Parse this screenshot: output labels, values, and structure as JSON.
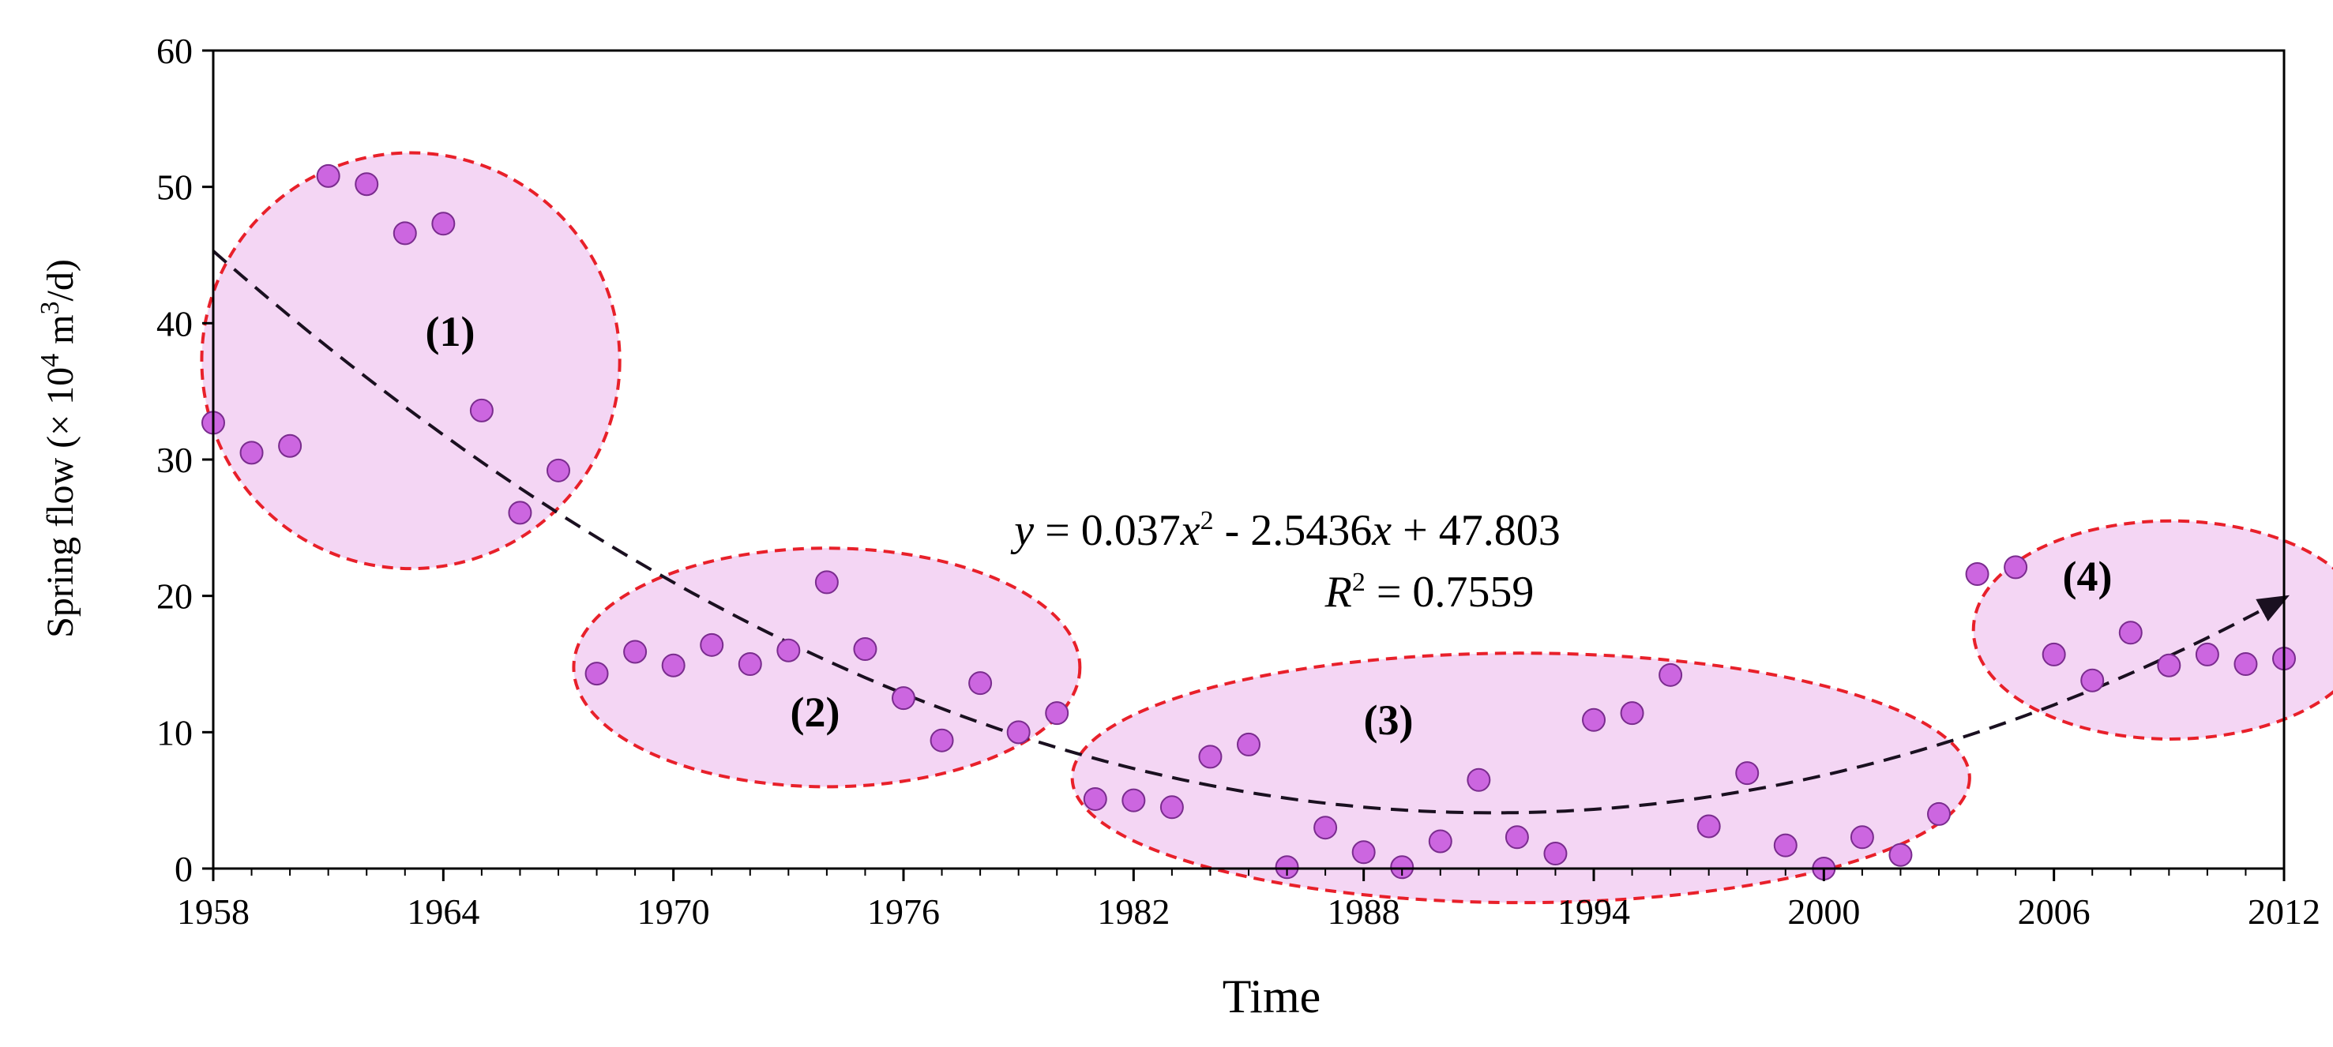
{
  "chart_data": {
    "type": "scatter",
    "title": "",
    "xlabel": "Time",
    "ylabel": {
      "prefix": "Spring flow (",
      "times": "×",
      "ten": "10",
      "exp": "4",
      "unit": "m",
      "unit_exp": "3",
      "suffix": "/d)"
    },
    "xlim": [
      1958,
      2012
    ],
    "ylim": [
      0,
      60
    ],
    "x_ticks": [
      1958,
      1964,
      1970,
      1976,
      1982,
      1988,
      1994,
      2000,
      2006,
      2012
    ],
    "y_ticks": [
      0,
      10,
      20,
      30,
      40,
      50,
      60
    ],
    "grid": false,
    "point_color": "#cc66e0",
    "point_edge_color": "#7a2c8e",
    "cluster_fill": "#f4d6f4",
    "cluster_edge_color": "#e8202a",
    "trend_color": "#1a1020",
    "series": [
      {
        "name": "Spring flow",
        "x": [
          1958,
          1959,
          1960,
          1961,
          1962,
          1963,
          1964,
          1965,
          1966,
          1967,
          1968,
          1969,
          1970,
          1971,
          1972,
          1973,
          1974,
          1975,
          1976,
          1977,
          1978,
          1979,
          1980,
          1981,
          1982,
          1983,
          1984,
          1985,
          1986,
          1987,
          1988,
          1989,
          1990,
          1991,
          1992,
          1993,
          1994,
          1995,
          1996,
          1997,
          1998,
          1999,
          2000,
          2001,
          2002,
          2003,
          2004,
          2005,
          2006,
          2007,
          2008,
          2009,
          2010,
          2011,
          2012
        ],
        "y": [
          32.7,
          30.5,
          31.0,
          50.8,
          50.2,
          46.6,
          47.3,
          33.6,
          26.1,
          29.2,
          14.3,
          15.9,
          14.9,
          16.4,
          15.0,
          16.0,
          21.0,
          16.1,
          12.5,
          9.4,
          13.6,
          10.0,
          11.4,
          5.1,
          5.0,
          4.5,
          8.2,
          9.1,
          0.1,
          3.0,
          1.2,
          0.1,
          2.0,
          6.5,
          2.3,
          1.1,
          10.9,
          11.4,
          14.2,
          3.1,
          7.0,
          1.7,
          0.0,
          2.3,
          1.0,
          4.0,
          21.6,
          22.1,
          15.7,
          13.8,
          17.3,
          14.9,
          15.7,
          15.0,
          15.4
        ]
      }
    ],
    "trendline": {
      "type": "polynomial",
      "equation": "y = 0.037x² - 2.5436x + 47.803",
      "a": 0.037,
      "b": -2.5436,
      "c": 47.803,
      "r_squared": "0.7559",
      "x_start": 1958,
      "x_end": 2012,
      "arrow_at_end": true
    },
    "equation_label": {
      "y_var": "y",
      "part1": " = 0.037",
      "x_var": "x",
      "exp": "2",
      "part2": " - 2.5436",
      "x_var2": "x",
      "part3": " + 47.803",
      "r_var": "R",
      "r_exp": "2",
      "r_part": " = 0.7559"
    },
    "clusters": [
      {
        "label": "(1)",
        "x_range": [
          1957.7,
          1968.6
        ],
        "y_range": [
          22.0,
          52.5
        ]
      },
      {
        "label": "(2)",
        "x_range": [
          1967.4,
          1980.6
        ],
        "y_range": [
          6.0,
          23.5
        ]
      },
      {
        "label": "(3)",
        "x_range": [
          1980.4,
          2003.8
        ],
        "y_range": [
          -2.5,
          15.8
        ]
      },
      {
        "label": "(4)",
        "x_range": [
          2003.9,
          2014.2
        ],
        "y_range": [
          9.5,
          25.5
        ]
      }
    ]
  }
}
